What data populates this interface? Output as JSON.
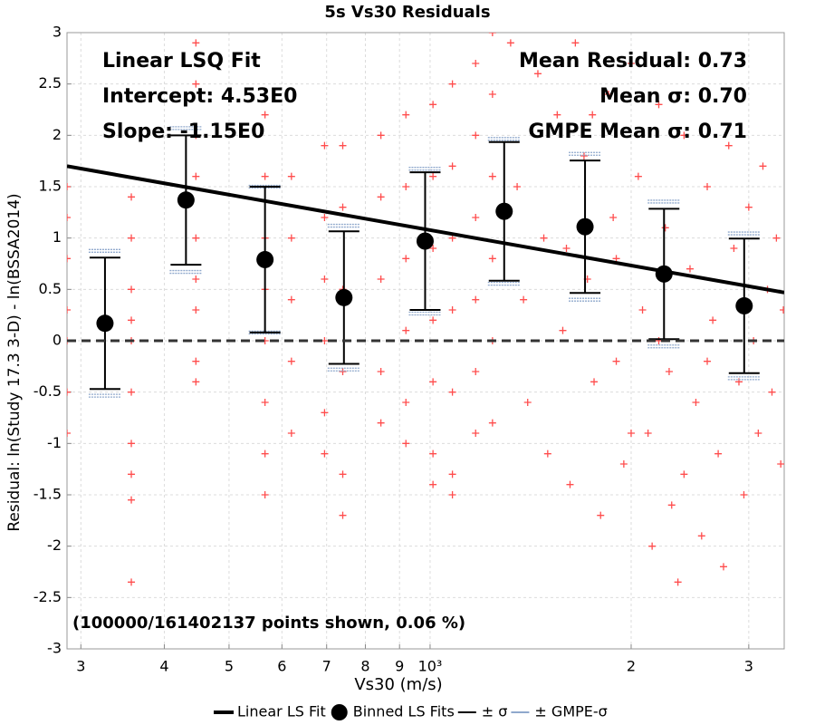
{
  "chart_data": {
    "type": "scatter",
    "title": "5s Vs30 Residuals",
    "x_label": "Vs30 (m/s)",
    "y_label": "Residual: ln(Study 17.3 3-D) - ln(BSSA2014)",
    "x_log": true,
    "grid": true,
    "xlim": [
      286,
      3390
    ],
    "ylim": [
      -3,
      3
    ],
    "xticks": [
      {
        "value": 300,
        "label": "3"
      },
      {
        "value": 400,
        "label": "4"
      },
      {
        "value": 500,
        "label": "5"
      },
      {
        "value": 600,
        "label": "6"
      },
      {
        "value": 700,
        "label": "7"
      },
      {
        "value": 800,
        "label": "8"
      },
      {
        "value": 900,
        "label": "9"
      },
      {
        "value": 1000,
        "label": "10³"
      },
      {
        "value": 2000,
        "label": "2"
      },
      {
        "value": 3000,
        "label": "3"
      }
    ],
    "yticks": [
      -3,
      -2.5,
      -2,
      -1.5,
      -1,
      -0.5,
      0,
      0.5,
      1,
      1.5,
      2,
      2.5,
      3
    ],
    "reference_line": 0,
    "annotations": [
      "Linear LSQ Fit",
      "Intercept: 4.53E0",
      "Slope: -1.15E0",
      "Mean Residual: 0.73",
      "Mean σ: 0.70",
      "GMPE Mean σ: 0.71",
      "(100000/161402137 points shown, 0.06 %)"
    ],
    "series": [
      {
        "style": "cross",
        "color": "#ff4d4d",
        "x": [
          286,
          286,
          286,
          286,
          286,
          286,
          286,
          357,
          357,
          357,
          357,
          357,
          357,
          357,
          357,
          357,
          357,
          446,
          446,
          446,
          446,
          446,
          446,
          446,
          446,
          446,
          566,
          566,
          566,
          566,
          566,
          566,
          566,
          566,
          620,
          620,
          620,
          620,
          620,
          695,
          695,
          695,
          695,
          695,
          695,
          740,
          740,
          740,
          740,
          740,
          740,
          844,
          844,
          844,
          844,
          844,
          920,
          920,
          920,
          920,
          920,
          920,
          1010,
          1010,
          1010,
          1010,
          1010,
          1010,
          1010,
          1080,
          1080,
          1080,
          1080,
          1080,
          1080,
          1080,
          1170,
          1170,
          1170,
          1170,
          1170,
          1170,
          1240,
          1240,
          1240,
          1240,
          1240,
          1240,
          1320,
          1350,
          1380,
          1400,
          1450,
          1480,
          1500,
          1550,
          1580,
          1620,
          1650,
          1700,
          1720,
          1760,
          1800,
          1850,
          1880,
          1900,
          1950,
          2000,
          2050,
          2080,
          2120,
          2150,
          2200,
          2250,
          2280,
          2300,
          2350,
          2400,
          2450,
          2500,
          2550,
          2600,
          2650,
          2700,
          2750,
          2800,
          2850,
          2900,
          2950,
          3000,
          3050,
          3100,
          3150,
          3200,
          3250,
          3300,
          3350,
          3380,
          1600,
          1900,
          2400,
          2200,
          1750,
          2600,
          2000
        ],
        "values": [
          1.5,
          0.8,
          0,
          -0.5,
          -0.9,
          1.2,
          0.3,
          1.4,
          1.0,
          0.5,
          0,
          -0.5,
          -1.0,
          -1.3,
          -2.35,
          -1.55,
          0.2,
          2.9,
          2.5,
          2.0,
          1.6,
          1.0,
          0.6,
          0.3,
          -0.2,
          -0.4,
          2.2,
          1.6,
          1.0,
          0.5,
          0,
          -0.6,
          -1.1,
          -1.5,
          1.6,
          1.0,
          0.4,
          -0.2,
          -0.9,
          1.9,
          1.2,
          0.6,
          0,
          -0.7,
          -1.1,
          1.9,
          1.3,
          0.5,
          -0.3,
          -1.3,
          -1.7,
          2.0,
          1.4,
          0.6,
          -0.3,
          -0.8,
          2.2,
          1.5,
          0.8,
          0.1,
          -0.6,
          -1.0,
          2.3,
          1.6,
          0.9,
          0.2,
          -0.4,
          -1.1,
          -1.4,
          2.5,
          1.7,
          1.0,
          0.3,
          -0.5,
          -1.3,
          -1.5,
          2.7,
          2.0,
          1.2,
          0.4,
          -0.3,
          -0.9,
          3.0,
          2.4,
          1.6,
          0.8,
          0.0,
          -0.8,
          2.9,
          1.5,
          0.4,
          -0.6,
          2.6,
          1.0,
          -1.1,
          2.2,
          0.1,
          -1.4,
          2.9,
          1.8,
          0.6,
          -0.4,
          -1.7,
          2.4,
          1.2,
          -0.2,
          -1.2,
          2.7,
          1.6,
          0.3,
          -0.9,
          -2.0,
          2.3,
          1.1,
          -0.3,
          -1.6,
          -2.35,
          2.0,
          0.7,
          -0.6,
          -1.9,
          1.5,
          0.2,
          -1.1,
          -2.2,
          1.9,
          0.9,
          -0.4,
          -1.5,
          1.3,
          0.0,
          -0.9,
          1.7,
          0.5,
          -0.5,
          1.0,
          -1.2,
          0.3,
          0.9,
          0.8,
          -1.3,
          0.0,
          2.2,
          -0.2,
          -0.9
        ]
      },
      {
        "name": "Linear LS Fit",
        "style": "line",
        "color": "#000000",
        "x": [
          286,
          3390
        ],
        "values": [
          1.7,
          0.47
        ]
      },
      {
        "name": "Binned LS Fits",
        "style": "dot",
        "color": "#000000",
        "x": [
          326,
          431,
          566,
          743,
          983,
          1291,
          1706,
          2240,
          2953
        ],
        "values": [
          0.17,
          1.37,
          0.79,
          0.42,
          0.97,
          1.26,
          1.11,
          0.65,
          0.34
        ]
      },
      {
        "name": "± σ",
        "style": "error",
        "color": "#000000",
        "errors": [
          0.64,
          0.63,
          0.71,
          0.645,
          0.67,
          0.675,
          0.645,
          0.635,
          0.655
        ]
      },
      {
        "name": "± GMPE-σ",
        "style": "gmpe",
        "color": "#8fa8cc",
        "errors": [
          0.705,
          0.7,
          0.71,
          0.7,
          0.705,
          0.705,
          0.71,
          0.705,
          0.705
        ]
      }
    ]
  }
}
